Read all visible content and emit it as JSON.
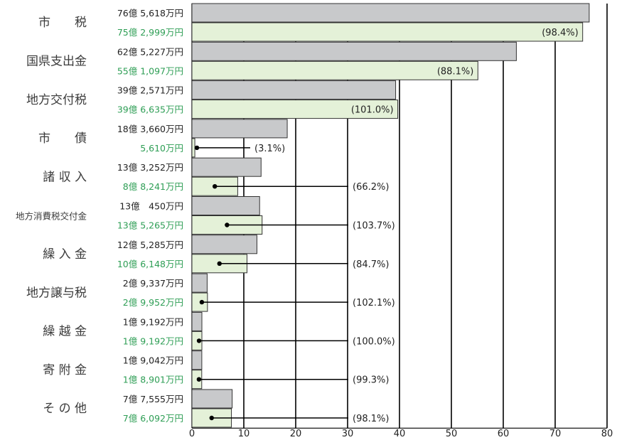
{
  "chart_data": {
    "type": "bar",
    "orientation": "horizontal",
    "xlim": [
      0,
      80
    ],
    "x_ticks": [
      "0",
      "10",
      "20",
      "30",
      "40",
      "50",
      "60",
      "70",
      "80"
    ],
    "grid": "vertical",
    "colors": {
      "budget": "#c8c9cb",
      "settlement": "#e4f1d8",
      "settlement_text": "#2e9e55"
    },
    "categories": [
      {
        "label": "市　　税",
        "budget_label": "76億 5,618万円",
        "settlement_label": "75億 2,999万円",
        "budget": 76.5618,
        "settlement": 75.2999,
        "pct": "(98.4%)",
        "pct_inside": true
      },
      {
        "label": "国県支出金",
        "budget_label": "62億 5,227万円",
        "settlement_label": "55億 1,097万円",
        "budget": 62.5227,
        "settlement": 55.1097,
        "pct": "(88.1%)",
        "pct_inside": true
      },
      {
        "label": "地方交付税",
        "budget_label": "39億 2,571万円",
        "settlement_label": "39億 6,635万円",
        "budget": 39.2571,
        "settlement": 39.6635,
        "pct": "(101.0%)",
        "pct_inside": true
      },
      {
        "label": "市　　債",
        "budget_label": "18億 3,660万円",
        "settlement_label": "5,610万円",
        "budget": 18.366,
        "settlement": 0.561,
        "pct": "(3.1%)",
        "pct_inside": false
      },
      {
        "label": "諸 収 入",
        "budget_label": "13億 3,252万円",
        "settlement_label": "8億 8,241万円",
        "budget": 13.3252,
        "settlement": 8.8241,
        "pct": "(66.2%)",
        "pct_inside": false
      },
      {
        "label": "地方消費税交付金",
        "budget_label": "13億　450万円",
        "settlement_label": "13億 5,265万円",
        "budget": 13.045,
        "settlement": 13.5265,
        "pct": "(103.7%)",
        "pct_inside": false,
        "small": true
      },
      {
        "label": "繰 入 金",
        "budget_label": "12億 5,285万円",
        "settlement_label": "10億 6,148万円",
        "budget": 12.5285,
        "settlement": 10.6148,
        "pct": "(84.7%)",
        "pct_inside": false
      },
      {
        "label": "地方譲与税",
        "budget_label": "2億 9,337万円",
        "settlement_label": "2億 9,952万円",
        "budget": 2.9337,
        "settlement": 2.9952,
        "pct": "(102.1%)",
        "pct_inside": false
      },
      {
        "label": "繰 越 金",
        "budget_label": "1億 9,192万円",
        "settlement_label": "1億 9,192万円",
        "budget": 1.9192,
        "settlement": 1.9192,
        "pct": "(100.0%)",
        "pct_inside": false
      },
      {
        "label": "寄 附 金",
        "budget_label": "1億 9,042万円",
        "settlement_label": "1億 8,901万円",
        "budget": 1.9042,
        "settlement": 1.8901,
        "pct": "(99.3%)",
        "pct_inside": false
      },
      {
        "label": "そ の 他",
        "budget_label": "7億 7,555万円",
        "settlement_label": "7億 6,092万円",
        "budget": 7.7555,
        "settlement": 7.6092,
        "pct": "(98.1%)",
        "pct_inside": false
      }
    ]
  }
}
